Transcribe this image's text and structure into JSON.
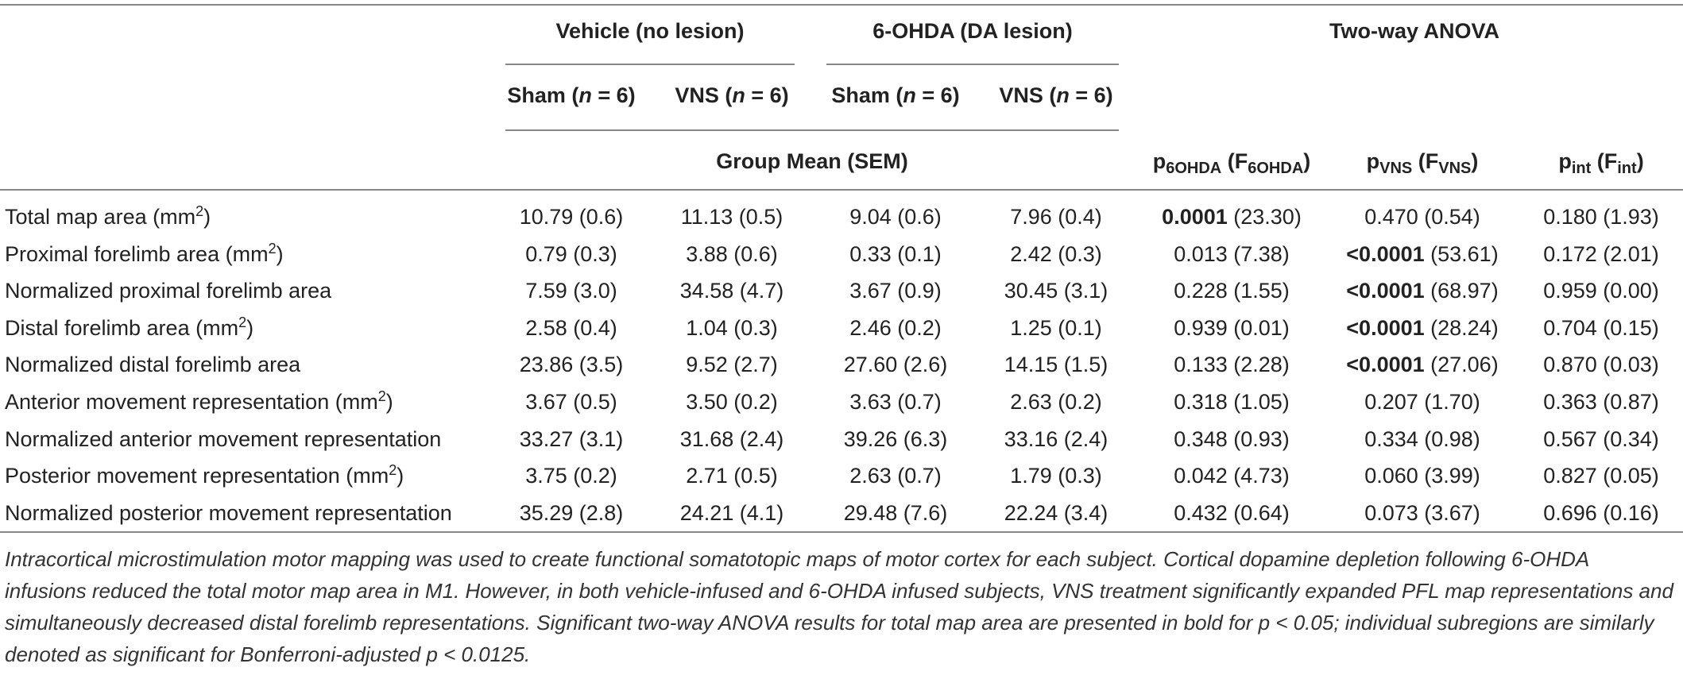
{
  "header": {
    "vehicle_group": "Vehicle (no lesion)",
    "lesion_group": "6-OHDA (DA lesion)",
    "anova_group": "Two-way ANOVA",
    "sham_label": "Sham (",
    "vns_label": "VNS (",
    "n_italic": "n",
    "n_eq": " = 6)",
    "group_mean": "Group Mean (SEM)",
    "p": "p",
    "f_open": " (F",
    "close": ")",
    "sub_6ohda": "6OHDA",
    "sub_vns": "VNS",
    "sub_int": "int"
  },
  "rows": [
    {
      "label": "Total map area (mm",
      "sup": "2",
      "label_end": ")",
      "c1": "10.79 (0.6)",
      "c2": "11.13 (0.5)",
      "c3": "9.04 (0.6)",
      "c4": "7.96 (0.4)",
      "a1_bold": "0.0001",
      "a1_rest": " (23.30)",
      "a2_bold": "",
      "a2_rest": "0.470 (0.54)",
      "a3": "0.180 (1.93)"
    },
    {
      "label": "Proximal forelimb area (mm",
      "sup": "2",
      "label_end": ")",
      "c1": "0.79 (0.3)",
      "c2": "3.88 (0.6)",
      "c3": "0.33 (0.1)",
      "c4": "2.42 (0.3)",
      "a1_bold": "",
      "a1_rest": "0.013 (7.38)",
      "a2_bold": "<0.0001",
      "a2_rest": " (53.61)",
      "a3": "0.172 (2.01)"
    },
    {
      "label": "Normalized proximal forelimb area",
      "sup": "",
      "label_end": "",
      "c1": "7.59 (3.0)",
      "c2": "34.58 (4.7)",
      "c3": "3.67 (0.9)",
      "c4": "30.45 (3.1)",
      "a1_bold": "",
      "a1_rest": "0.228 (1.55)",
      "a2_bold": "<0.0001",
      "a2_rest": " (68.97)",
      "a3": "0.959 (0.00)"
    },
    {
      "label": "Distal forelimb area (mm",
      "sup": "2",
      "label_end": ")",
      "c1": "2.58 (0.4)",
      "c2": "1.04 (0.3)",
      "c3": "2.46 (0.2)",
      "c4": "1.25 (0.1)",
      "a1_bold": "",
      "a1_rest": "0.939 (0.01)",
      "a2_bold": "<0.0001",
      "a2_rest": " (28.24)",
      "a3": "0.704 (0.15)"
    },
    {
      "label": "Normalized distal forelimb area",
      "sup": "",
      "label_end": "",
      "c1": "23.86 (3.5)",
      "c2": "9.52 (2.7)",
      "c3": "27.60 (2.6)",
      "c4": "14.15 (1.5)",
      "a1_bold": "",
      "a1_rest": "0.133 (2.28)",
      "a2_bold": "<0.0001",
      "a2_rest": " (27.06)",
      "a3": "0.870 (0.03)"
    },
    {
      "label": "Anterior movement representation (mm",
      "sup": "2",
      "label_end": ")",
      "c1": "3.67 (0.5)",
      "c2": "3.50 (0.2)",
      "c3": "3.63 (0.7)",
      "c4": "2.63 (0.2)",
      "a1_bold": "",
      "a1_rest": "0.318 (1.05)",
      "a2_bold": "",
      "a2_rest": "0.207 (1.70)",
      "a3": "0.363 (0.87)"
    },
    {
      "label": "Normalized anterior movement representation",
      "sup": "",
      "label_end": "",
      "c1": "33.27 (3.1)",
      "c2": "31.68 (2.4)",
      "c3": "39.26 (6.3)",
      "c4": "33.16 (2.4)",
      "a1_bold": "",
      "a1_rest": "0.348 (0.93)",
      "a2_bold": "",
      "a2_rest": "0.334 (0.98)",
      "a3": "0.567 (0.34)"
    },
    {
      "label": "Posterior movement representation (mm",
      "sup": "2",
      "label_end": ")",
      "c1": "3.75 (0.2)",
      "c2": "2.71 (0.5)",
      "c3": "2.63 (0.7)",
      "c4": "1.79 (0.3)",
      "a1_bold": "",
      "a1_rest": "0.042 (4.73)",
      "a2_bold": "",
      "a2_rest": "0.060 (3.99)",
      "a3": "0.827 (0.05)"
    },
    {
      "label": "Normalized posterior movement representation",
      "sup": "",
      "label_end": "",
      "c1": "35.29 (2.8)",
      "c2": "24.21 (4.1)",
      "c3": "29.48 (7.6)",
      "c4": "22.24 (3.4)",
      "a1_bold": "",
      "a1_rest": "0.432 (0.64)",
      "a2_bold": "",
      "a2_rest": "0.073 (3.67)",
      "a3": "0.696 (0.16)"
    }
  ],
  "caption": {
    "text": "Intracortical microstimulation motor mapping was used to create functional somatotopic maps of motor cortex for each subject. Cortical dopamine depletion following 6-OHDA infusions reduced the total motor map area in M1. However, in both vehicle-infused and 6-OHDA infused subjects, VNS treatment significantly expanded PFL map representations and simultaneously decreased distal forelimb representations. Significant two-way ANOVA results for total map area are presented in bold for p < 0.05; individual subregions are similarly denoted as significant for Bonferroni-adjusted p < 0.0125."
  }
}
